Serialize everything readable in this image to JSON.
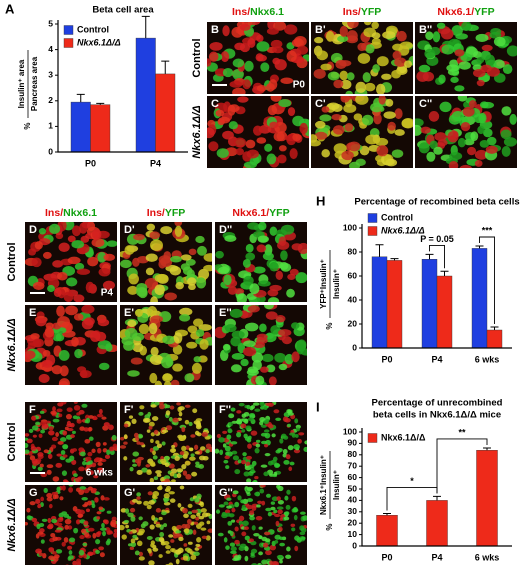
{
  "chart_data": [
    {
      "type": "bar",
      "panel_label": "A",
      "title": [
        "Beta cell area"
      ],
      "y_label": {
        "prefix": "%",
        "numerator": "Insulin⁺ area",
        "denominator": "Pancreas area"
      },
      "categories": [
        "P0",
        "P4"
      ],
      "series": [
        {
          "name": "Control",
          "color": "#1f3fe0",
          "values": [
            1.95,
            4.45
          ],
          "errors": [
            0.3,
            0.85
          ]
        },
        {
          "name": "Nkx6.1Δ/Δ",
          "color": "#ee2a1a",
          "values": [
            1.85,
            3.05
          ],
          "errors": [
            0.05,
            0.5
          ]
        }
      ],
      "ylim": [
        0,
        5
      ],
      "yticks": [
        0,
        1,
        2,
        3,
        4,
        5
      ],
      "legend": "top-left",
      "annotations": []
    },
    {
      "type": "bar",
      "panel_label": "H",
      "title": [
        "Percentage of recombined beta cells"
      ],
      "y_label": {
        "prefix": "%",
        "numerator": "YFP⁺Insulin⁺",
        "denominator": "Insulin⁺"
      },
      "categories": [
        "P0",
        "P4",
        "6 wks"
      ],
      "series": [
        {
          "name": "Control",
          "color": "#1f3fe0",
          "values": [
            76,
            74,
            83
          ],
          "errors": [
            10,
            4,
            2
          ]
        },
        {
          "name": "Nkx6.1Δ/Δ",
          "color": "#ee2a1a",
          "values": [
            73,
            60,
            15
          ],
          "errors": [
            1.5,
            4,
            2.5
          ]
        }
      ],
      "ylim": [
        0,
        100
      ],
      "yticks": [
        0,
        20,
        40,
        60,
        80,
        100
      ],
      "legend": "top-left",
      "annotations": [
        {
          "text": "P = 0.05",
          "category": 1
        },
        {
          "text": "***",
          "category": 2
        }
      ]
    },
    {
      "type": "bar",
      "panel_label": "I",
      "title": [
        "Percentage of unrecombined",
        "beta cells in Nkx6.1Δ/Δ mice"
      ],
      "y_label": {
        "prefix": "%",
        "numerator": "Nkx6.1⁺Insulin⁺",
        "denominator": "Insulin⁺"
      },
      "categories": [
        "P0",
        "P4",
        "6 wks"
      ],
      "series": [
        {
          "name": "Nkx6.1Δ/Δ",
          "color": "#ee2a1a",
          "values": [
            27,
            40,
            84
          ],
          "errors": [
            1.5,
            3.5,
            2
          ]
        }
      ],
      "ylim": [
        0,
        100
      ],
      "yticks": [
        0,
        10,
        20,
        30,
        40,
        50,
        60,
        70,
        80,
        90,
        100
      ],
      "legend": "top-left",
      "annotations": [
        {
          "text": "*",
          "categories": [
            0,
            1
          ]
        },
        {
          "text": "**",
          "categories": [
            1,
            2
          ]
        }
      ]
    }
  ],
  "image_panels": [
    {
      "headers": [
        [
          {
            "text": "Ins",
            "color": "#e01010"
          },
          {
            "text": "/",
            "color": "#e01010"
          },
          {
            "text": "Nkx6.1",
            "color": "#10a010"
          }
        ],
        [
          {
            "text": "Ins",
            "color": "#e01010"
          },
          {
            "text": "/",
            "color": "#e01010"
          },
          {
            "text": "YFP",
            "color": "#10a010"
          }
        ],
        [
          {
            "text": "Nkx6.1",
            "color": "#e01010"
          },
          {
            "text": "/",
            "color": "#e01010"
          },
          {
            "text": "YFP",
            "color": "#10a010"
          }
        ]
      ],
      "rows": [
        {
          "label": "Control",
          "letters": [
            "B",
            "B'",
            "B''"
          ],
          "stage": "P0"
        },
        {
          "label": "Nkx6.1Δ/Δ",
          "letters": [
            "C",
            "C'",
            "C''"
          ]
        }
      ]
    },
    {
      "headers": [
        [
          {
            "text": "Ins",
            "color": "#e01010"
          },
          {
            "text": "/",
            "color": "#e01010"
          },
          {
            "text": "Nkx6.1",
            "color": "#10a010"
          }
        ],
        [
          {
            "text": "Ins",
            "color": "#e01010"
          },
          {
            "text": "/",
            "color": "#e01010"
          },
          {
            "text": "YFP",
            "color": "#10a010"
          }
        ],
        [
          {
            "text": "Nkx6.1",
            "color": "#e01010"
          },
          {
            "text": "/",
            "color": "#e01010"
          },
          {
            "text": "YFP",
            "color": "#10a010"
          }
        ]
      ],
      "rows": [
        {
          "label": "Control",
          "letters": [
            "D",
            "D'",
            "D''"
          ],
          "stage": "P4"
        },
        {
          "label": "Nkx6.1Δ/Δ",
          "letters": [
            "E",
            "E'",
            "E''"
          ]
        },
        {
          "label": "Control",
          "letters": [
            "F",
            "F'",
            "F''"
          ],
          "stage": "6 wks"
        },
        {
          "label": "Nkx6.1Δ/Δ",
          "letters": [
            "G",
            "G'",
            "G''"
          ]
        }
      ]
    }
  ]
}
